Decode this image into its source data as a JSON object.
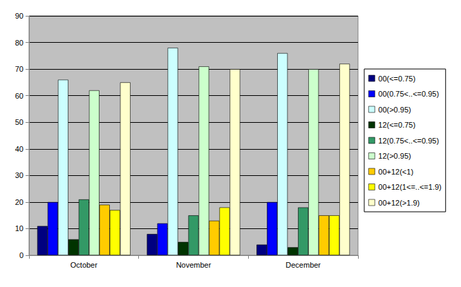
{
  "chart_data": {
    "type": "bar",
    "categories": [
      "October",
      "November",
      "December"
    ],
    "ylim": [
      0,
      90
    ],
    "yticks": [
      0,
      10,
      20,
      30,
      40,
      50,
      60,
      70,
      80,
      90
    ],
    "grid": true,
    "legend": "right",
    "series": [
      {
        "name": "00(<=0.75)",
        "color": "#000080",
        "values": [
          11,
          8,
          4
        ]
      },
      {
        "name": "00(0.75<..<=0.95)",
        "color": "#0000FF",
        "values": [
          20,
          12,
          20
        ]
      },
      {
        "name": "00(>0.95)",
        "color": "#CCFFFF",
        "values": [
          66,
          78,
          76
        ]
      },
      {
        "name": "12(<=0.75)",
        "color": "#003300",
        "values": [
          6,
          5,
          3
        ]
      },
      {
        "name": "12(0.75<..<=0.95)",
        "color": "#339966",
        "values": [
          21,
          15,
          18
        ]
      },
      {
        "name": "12(>0.95)",
        "color": "#CCFFCC",
        "values": [
          62,
          71,
          70
        ]
      },
      {
        "name": "00+12(<1)",
        "color": "#FFCC00",
        "values": [
          19,
          13,
          15
        ]
      },
      {
        "name": "00+12(1<=..<=1.9)",
        "color": "#FFFF00",
        "values": [
          17,
          18,
          15
        ]
      },
      {
        "name": "00+12(>1.9)",
        "color": "#FFFFCC",
        "values": [
          65,
          70,
          72
        ]
      }
    ]
  }
}
